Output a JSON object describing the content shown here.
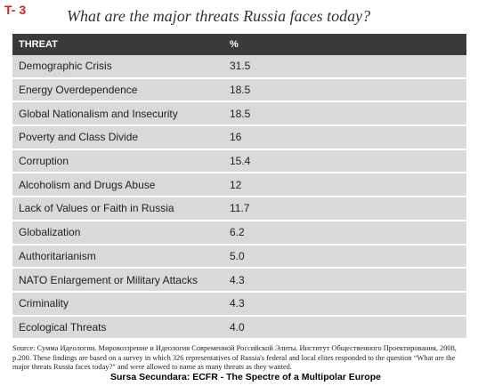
{
  "label": "T- 3",
  "title": "What are the major threats Russia faces today?",
  "table": {
    "header": [
      "THREAT",
      "%"
    ],
    "rows": [
      [
        "Demographic Crisis",
        "31.5"
      ],
      [
        "Energy Overdependence",
        "18.5"
      ],
      [
        "Global Nationalism and Insecurity",
        "18.5"
      ],
      [
        "Poverty and Class Divide",
        "16"
      ],
      [
        "Corruption",
        "15.4"
      ],
      [
        "Alcoholism and Drugs Abuse",
        "12"
      ],
      [
        "Lack of Values or Faith in Russia",
        "11.7"
      ],
      [
        "Globalization",
        "6.2"
      ],
      [
        "Authoritarianism",
        "5.0"
      ],
      [
        "NATO Enlargement or Military Attacks",
        "4.3"
      ],
      [
        "Criminality",
        "4.3"
      ],
      [
        "Ecological Threats",
        "4.0"
      ]
    ]
  },
  "source": "Source: Сумма Идеологии. Мировоззрение и Идеология Современной Российской Элиты. Институт Общественного Проектирования, 2008, p.200. These findings are based on a survey in which 326 representatives of Russia's federal and local elites responded to the question “What are the major threats Russia faces today?” and were allowed to name as many threats as they wanted.",
  "credit": "Sursa Secundara: ECFR - The  Spectre of a Multipolar Europe"
}
